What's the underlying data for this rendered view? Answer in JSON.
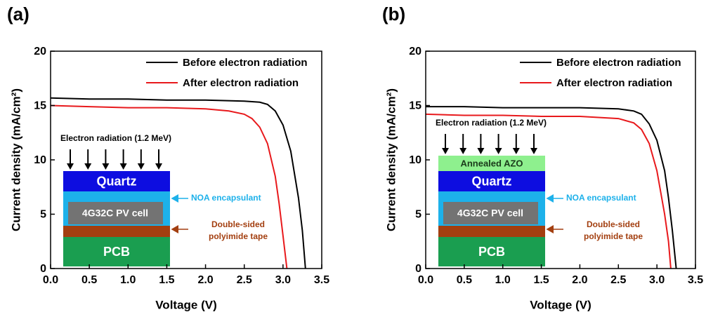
{
  "chart_data": [
    {
      "type": "line",
      "label": "(a)",
      "xlabel": "Voltage (V)",
      "ylabel": "Current density (mA/cm²)",
      "xlim": [
        0,
        3.5
      ],
      "ylim": [
        0,
        20
      ],
      "xticks": [
        {
          "value": 0,
          "label": "0.0"
        },
        0.5,
        {
          "value": 1,
          "label": "1.0"
        },
        1.5,
        {
          "value": 2,
          "label": "2.0"
        },
        2.5,
        {
          "value": 3,
          "label": "3.0"
        },
        3.5
      ],
      "yticks": [
        0,
        5,
        10,
        15,
        20
      ],
      "legend": "upper right",
      "series": [
        {
          "name": "Before electron radiation",
          "color": "#000000",
          "x": [
            0,
            0.5,
            1,
            1.5,
            2,
            2.5,
            2.7,
            2.8,
            2.9,
            3.0,
            3.1,
            3.2,
            3.25,
            3.29
          ],
          "values": [
            15.7,
            15.6,
            15.6,
            15.5,
            15.5,
            15.4,
            15.3,
            15.1,
            14.5,
            13.2,
            10.8,
            6.5,
            3.5,
            0
          ]
        },
        {
          "name": "After electron radiation",
          "color": "#e8191c",
          "x": [
            0,
            0.5,
            1,
            1.5,
            2,
            2.3,
            2.5,
            2.6,
            2.7,
            2.8,
            2.9,
            2.95,
            3.0,
            3.05
          ],
          "values": [
            15.0,
            14.9,
            14.8,
            14.8,
            14.7,
            14.5,
            14.2,
            13.8,
            13.0,
            11.5,
            8.5,
            6,
            3,
            0
          ]
        }
      ],
      "inset": {
        "arrow_label": "Electron radiation (1.2 MeV)",
        "layers": [
          {
            "text": "PCB",
            "color": "#1a9e50",
            "text_color": "#ffffff"
          },
          {
            "color": "#a33f10",
            "callout": [
              "Double-sided",
              "polyimide tape"
            ]
          },
          {
            "color": "#1db1ea",
            "callout": [
              "NOA encapsulant"
            ],
            "cell": {
              "text": "4G32C PV cell",
              "color": "#737373",
              "text_color": "#ffffff"
            }
          },
          {
            "text": "Quartz",
            "color": "#0d0de0",
            "text_color": "#ffffff"
          }
        ]
      }
    },
    {
      "type": "line",
      "label": "(b)",
      "xlabel": "Voltage (V)",
      "ylabel": "Current density (mA/cm²)",
      "xlim": [
        0,
        3.5
      ],
      "ylim": [
        0,
        20
      ],
      "xticks": [
        {
          "value": 0,
          "label": "0.0"
        },
        0.5,
        {
          "value": 1,
          "label": "1.0"
        },
        1.5,
        {
          "value": 2,
          "label": "2.0"
        },
        2.5,
        {
          "value": 3,
          "label": "3.0"
        },
        3.5
      ],
      "yticks": [
        0,
        5,
        10,
        15,
        20
      ],
      "legend": "upper right",
      "series": [
        {
          "name": "Before electron radiation",
          "color": "#000000",
          "x": [
            0,
            0.5,
            1,
            1.5,
            2,
            2.5,
            2.7,
            2.8,
            2.9,
            3.0,
            3.1,
            3.15,
            3.2,
            3.25
          ],
          "values": [
            14.9,
            14.9,
            14.8,
            14.8,
            14.8,
            14.7,
            14.5,
            14.2,
            13.3,
            11.8,
            9,
            6.5,
            3.5,
            0
          ]
        },
        {
          "name": "After electron radiation",
          "color": "#e8191c",
          "x": [
            0,
            0.5,
            1,
            1.5,
            2,
            2.5,
            2.7,
            2.8,
            2.9,
            3.0,
            3.05,
            3.1,
            3.15,
            3.18
          ],
          "values": [
            14.2,
            14.1,
            14.1,
            14.0,
            14.0,
            13.8,
            13.4,
            12.8,
            11.5,
            9,
            7,
            5,
            2.5,
            0
          ]
        }
      ],
      "inset": {
        "arrow_label": "Electron radiation (1.2 MeV)",
        "layers": [
          {
            "text": "PCB",
            "color": "#1a9e50",
            "text_color": "#ffffff"
          },
          {
            "color": "#a33f10",
            "callout": [
              "Double-sided",
              "polyimide tape"
            ]
          },
          {
            "color": "#1db1ea",
            "callout": [
              "NOA encapsulant"
            ],
            "cell": {
              "text": "4G32C PV cell",
              "color": "#737373",
              "text_color": "#ffffff"
            }
          },
          {
            "text": "Quartz",
            "color": "#0d0de0",
            "text_color": "#ffffff"
          },
          {
            "text": "Annealed AZO",
            "color": "#8ef08e",
            "text_color": "#1a3a1a"
          }
        ]
      }
    }
  ]
}
